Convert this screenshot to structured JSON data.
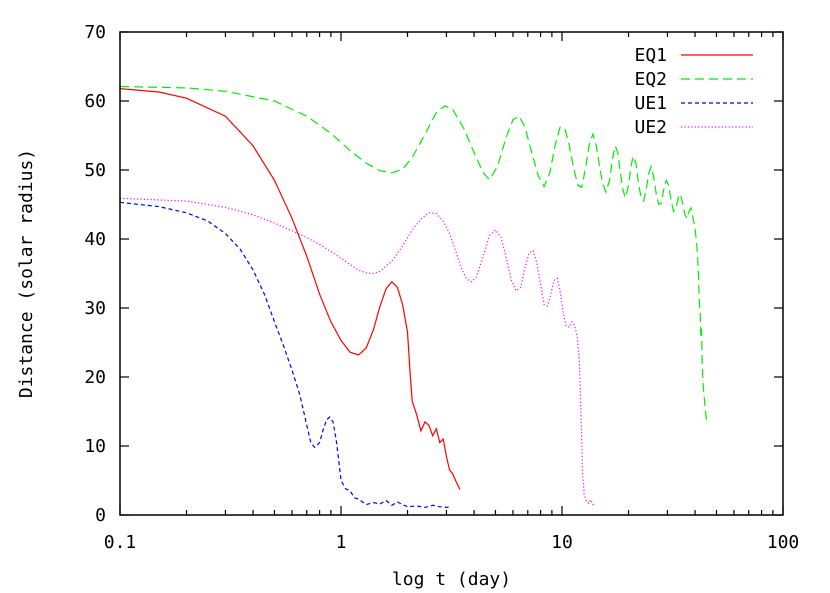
{
  "chart_data": {
    "type": "line",
    "title": "",
    "xlabel": "log t (day)",
    "ylabel": "Distance (solar radius)",
    "xscale": "log",
    "xlim": [
      0.1,
      100
    ],
    "ylim": [
      0,
      70
    ],
    "xticks": [
      0.1,
      1,
      10,
      100
    ],
    "xtick_labels": [
      "0.1",
      "1",
      "10",
      "100"
    ],
    "yticks": [
      0,
      10,
      20,
      30,
      40,
      50,
      60,
      70
    ],
    "ytick_labels": [
      "0",
      "10",
      "20",
      "30",
      "40",
      "50",
      "60",
      "70"
    ],
    "grid": false,
    "legend_position": "top-right",
    "series": [
      {
        "name": "EQ1",
        "color": "#ff0000",
        "dash": "solid",
        "points": [
          [
            0.1,
            61.8
          ],
          [
            0.15,
            61.3
          ],
          [
            0.2,
            60.4
          ],
          [
            0.3,
            57.8
          ],
          [
            0.4,
            53.5
          ],
          [
            0.5,
            48.5
          ],
          [
            0.6,
            43
          ],
          [
            0.7,
            37.5
          ],
          [
            0.8,
            32
          ],
          [
            0.9,
            28
          ],
          [
            1.0,
            25.3
          ],
          [
            1.1,
            23.6
          ],
          [
            1.2,
            23.2
          ],
          [
            1.3,
            24.2
          ],
          [
            1.4,
            26.8
          ],
          [
            1.5,
            30.2
          ],
          [
            1.6,
            32.8
          ],
          [
            1.7,
            33.8
          ],
          [
            1.8,
            33
          ],
          [
            1.9,
            30.5
          ],
          [
            2.0,
            26.5
          ],
          [
            2.05,
            21
          ],
          [
            2.1,
            16.5
          ],
          [
            2.2,
            14.5
          ],
          [
            2.3,
            12.2
          ],
          [
            2.4,
            13.5
          ],
          [
            2.5,
            13
          ],
          [
            2.6,
            11.5
          ],
          [
            2.7,
            12.5
          ],
          [
            2.8,
            10.5
          ],
          [
            2.9,
            11
          ],
          [
            3.0,
            8.5
          ],
          [
            3.1,
            6.5
          ],
          [
            3.2,
            6
          ],
          [
            3.3,
            5
          ],
          [
            3.45,
            3.7
          ]
        ]
      },
      {
        "name": "EQ2",
        "color": "#00ee00",
        "dash": "long",
        "points": [
          [
            0.1,
            62.1
          ],
          [
            0.2,
            61.9
          ],
          [
            0.3,
            61.4
          ],
          [
            0.5,
            60
          ],
          [
            0.7,
            57.8
          ],
          [
            0.9,
            55.3
          ],
          [
            1.1,
            52.8
          ],
          [
            1.3,
            51
          ],
          [
            1.5,
            49.9
          ],
          [
            1.7,
            49.6
          ],
          [
            1.9,
            50.1
          ],
          [
            2.1,
            51.8
          ],
          [
            2.4,
            55.2
          ],
          [
            2.7,
            58.3
          ],
          [
            2.95,
            59.3
          ],
          [
            3.2,
            58.8
          ],
          [
            3.6,
            56
          ],
          [
            4,
            52.5
          ],
          [
            4.4,
            49.6
          ],
          [
            4.7,
            48.6
          ],
          [
            5.1,
            50.5
          ],
          [
            5.6,
            54.8
          ],
          [
            6,
            57.3
          ],
          [
            6.4,
            57.8
          ],
          [
            6.8,
            56.2
          ],
          [
            7.3,
            52.5
          ],
          [
            7.8,
            49.2
          ],
          [
            8.3,
            47.6
          ],
          [
            8.8,
            49.5
          ],
          [
            9.3,
            53.5
          ],
          [
            9.8,
            56.2
          ],
          [
            10.3,
            56
          ],
          [
            10.8,
            53.5
          ],
          [
            11.3,
            50.2
          ],
          [
            11.8,
            47.8
          ],
          [
            12.3,
            47.5
          ],
          [
            12.8,
            50.5
          ],
          [
            13.3,
            53.8
          ],
          [
            13.8,
            55.2
          ],
          [
            14.3,
            53.5
          ],
          [
            14.8,
            50.5
          ],
          [
            15.3,
            48
          ],
          [
            15.8,
            46.8
          ],
          [
            16.4,
            48.5
          ],
          [
            16.9,
            51.5
          ],
          [
            17.4,
            53.5
          ],
          [
            17.9,
            52.5
          ],
          [
            18.4,
            49.5
          ],
          [
            18.9,
            47
          ],
          [
            19.4,
            46
          ],
          [
            20,
            47.8
          ],
          [
            20.5,
            50.5
          ],
          [
            21,
            52
          ],
          [
            21.6,
            51
          ],
          [
            22.2,
            48
          ],
          [
            22.8,
            46
          ],
          [
            23.4,
            45.5
          ],
          [
            24,
            47
          ],
          [
            24.7,
            49.5
          ],
          [
            25.3,
            50.5
          ],
          [
            26,
            49
          ],
          [
            26.7,
            46.5
          ],
          [
            27.4,
            45
          ],
          [
            28.1,
            45.2
          ],
          [
            28.8,
            47
          ],
          [
            29.6,
            48.5
          ],
          [
            30.4,
            47.8
          ],
          [
            31.2,
            45.5
          ],
          [
            32,
            44
          ],
          [
            32.8,
            44.5
          ],
          [
            33.6,
            46
          ],
          [
            34.4,
            46.5
          ],
          [
            35.2,
            45
          ],
          [
            36,
            43.5
          ],
          [
            36.8,
            43
          ],
          [
            37.6,
            44
          ],
          [
            38.4,
            44.5
          ],
          [
            39.2,
            43
          ],
          [
            40,
            41.5
          ],
          [
            40.5,
            40
          ],
          [
            41,
            38
          ],
          [
            41.4,
            35
          ],
          [
            41.8,
            31
          ],
          [
            42.2,
            29
          ],
          [
            42.5,
            26
          ],
          [
            42.8,
            27
          ],
          [
            43.1,
            22
          ],
          [
            43.5,
            19
          ],
          [
            44,
            17
          ],
          [
            44.6,
            15
          ],
          [
            45.2,
            13.4
          ]
        ]
      },
      {
        "name": "UE1",
        "color": "#0000ff",
        "dash": "short",
        "points": [
          [
            0.1,
            45.3
          ],
          [
            0.15,
            44.7
          ],
          [
            0.2,
            43.8
          ],
          [
            0.25,
            42.6
          ],
          [
            0.3,
            40.8
          ],
          [
            0.35,
            38.5
          ],
          [
            0.4,
            35.5
          ],
          [
            0.45,
            32
          ],
          [
            0.5,
            28
          ],
          [
            0.55,
            24.5
          ],
          [
            0.6,
            21
          ],
          [
            0.65,
            17.5
          ],
          [
            0.7,
            13
          ],
          [
            0.73,
            10.5
          ],
          [
            0.76,
            9.8
          ],
          [
            0.8,
            10.5
          ],
          [
            0.83,
            12.3
          ],
          [
            0.86,
            13.8
          ],
          [
            0.89,
            14.2
          ],
          [
            0.92,
            13.5
          ],
          [
            0.95,
            11
          ],
          [
            0.98,
            7.5
          ],
          [
            1.0,
            5
          ],
          [
            1.05,
            3.8
          ],
          [
            1.1,
            3.5
          ],
          [
            1.15,
            2.5
          ],
          [
            1.2,
            2.3
          ],
          [
            1.3,
            1.5
          ],
          [
            1.4,
            1.8
          ],
          [
            1.5,
            1.6
          ],
          [
            1.6,
            2.1
          ],
          [
            1.7,
            1.4
          ],
          [
            1.8,
            1.9
          ],
          [
            1.9,
            1.5
          ],
          [
            2.0,
            1.2
          ],
          [
            2.2,
            1.3
          ],
          [
            2.4,
            1.1
          ],
          [
            2.6,
            1.4
          ],
          [
            2.8,
            1.2
          ],
          [
            3.0,
            1.1
          ],
          [
            3.1,
            1.2
          ]
        ]
      },
      {
        "name": "UE2",
        "color": "#ff00ff",
        "dash": "dot",
        "points": [
          [
            0.1,
            45.9
          ],
          [
            0.2,
            45.5
          ],
          [
            0.3,
            44.6
          ],
          [
            0.4,
            43.5
          ],
          [
            0.5,
            42.3
          ],
          [
            0.6,
            41.2
          ],
          [
            0.7,
            40.2
          ],
          [
            0.8,
            39.2
          ],
          [
            0.9,
            38.2
          ],
          [
            1.0,
            37.2
          ],
          [
            1.1,
            36.3
          ],
          [
            1.2,
            35.5
          ],
          [
            1.3,
            35.1
          ],
          [
            1.4,
            35
          ],
          [
            1.5,
            35.3
          ],
          [
            1.7,
            36.8
          ],
          [
            1.9,
            39
          ],
          [
            2.1,
            41.3
          ],
          [
            2.3,
            42.9
          ],
          [
            2.5,
            43.8
          ],
          [
            2.7,
            43.7
          ],
          [
            2.9,
            42.6
          ],
          [
            3.1,
            40.8
          ],
          [
            3.3,
            38.3
          ],
          [
            3.5,
            35.8
          ],
          [
            3.7,
            34.2
          ],
          [
            3.9,
            33.8
          ],
          [
            4.1,
            34.5
          ],
          [
            4.4,
            37.5
          ],
          [
            4.7,
            40.5
          ],
          [
            5.0,
            41.3
          ],
          [
            5.3,
            40.2
          ],
          [
            5.6,
            37.2
          ],
          [
            5.9,
            34
          ],
          [
            6.2,
            32.5
          ],
          [
            6.5,
            33
          ],
          [
            6.8,
            35.8
          ],
          [
            7.1,
            38
          ],
          [
            7.4,
            38.3
          ],
          [
            7.7,
            36.5
          ],
          [
            8.0,
            33.3
          ],
          [
            8.3,
            30.5
          ],
          [
            8.6,
            30.3
          ],
          [
            8.9,
            32
          ],
          [
            9.2,
            34
          ],
          [
            9.5,
            34.3
          ],
          [
            9.8,
            32.5
          ],
          [
            10.1,
            29.5
          ],
          [
            10.4,
            27.5
          ],
          [
            10.8,
            27.2
          ],
          [
            11.1,
            28
          ],
          [
            11.4,
            27.5
          ],
          [
            11.7,
            26
          ],
          [
            12.0,
            22
          ],
          [
            12.2,
            14
          ],
          [
            12.4,
            6
          ],
          [
            12.6,
            3
          ],
          [
            12.9,
            2
          ],
          [
            13.2,
            1.7
          ],
          [
            13.5,
            2.2
          ],
          [
            13.8,
            1.5
          ],
          [
            14.2,
            1.6
          ]
        ]
      }
    ]
  }
}
